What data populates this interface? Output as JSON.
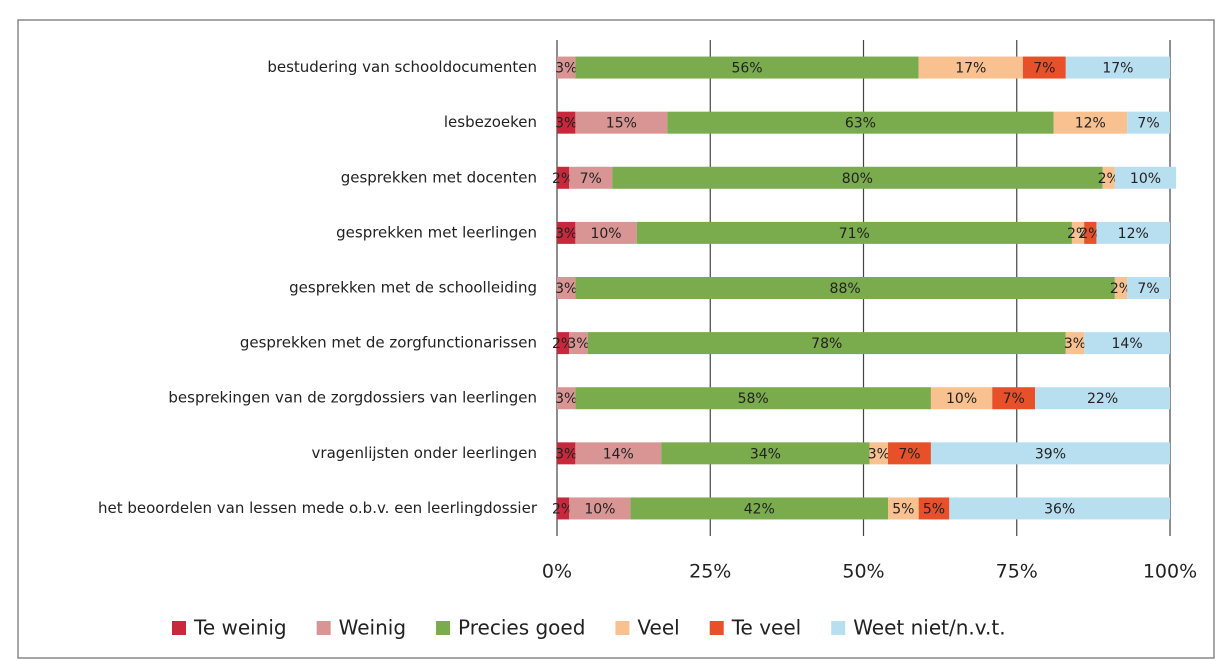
{
  "chart_data": {
    "type": "stacked-bar-horizontal",
    "categories": [
      "bestudering van schooldocumenten",
      "lesbezoeken",
      "gesprekken met docenten",
      "gesprekken met leerlingen",
      "gesprekken met de schoolleiding",
      "gesprekken met de zorgfunctionarissen",
      "besprekingen van de zorgdossiers van leerlingen",
      "vragenlijsten onder leerlingen",
      "het beoordelen van lessen mede o.b.v. een leerlingdossier"
    ],
    "series": [
      {
        "name": "Te weinig",
        "color": "#c8283c",
        "values": [
          null,
          3,
          2,
          3,
          null,
          2,
          null,
          3,
          2
        ],
        "value_labels": [
          null,
          "3%",
          "2%",
          "3%",
          null,
          "2%",
          null,
          "3%",
          "2%"
        ]
      },
      {
        "name": "Weinig",
        "color": "#d99594",
        "values": [
          3,
          15,
          7,
          10,
          3,
          3,
          3,
          14,
          10
        ],
        "value_labels": [
          "3%",
          "15%",
          "7%",
          "10%",
          "3%",
          "3%",
          "3%",
          "14%",
          "10%"
        ]
      },
      {
        "name": "Precies goed",
        "color": "#7aab4d",
        "values": [
          56,
          63,
          80,
          71,
          88,
          78,
          58,
          34,
          42
        ],
        "value_labels": [
          "56%",
          "63%",
          "80%",
          "71%",
          "88%",
          "78%",
          "58%",
          "34%",
          "42%"
        ]
      },
      {
        "name": "Veel",
        "color": "#f9c090",
        "values": [
          17,
          12,
          2,
          2,
          2,
          3,
          10,
          3,
          5
        ],
        "value_labels": [
          "17%",
          "12%",
          "2%",
          "2%",
          "2%",
          "3%",
          "10%",
          "3%",
          "5%"
        ]
      },
      {
        "name": "Te veel",
        "color": "#e8502a",
        "values": [
          7,
          null,
          null,
          2,
          null,
          null,
          7,
          7,
          5
        ],
        "value_labels": [
          "7%",
          null,
          null,
          "2%",
          null,
          null,
          "7%",
          "7%",
          "5%"
        ]
      },
      {
        "name": "Weet niet/n.v.t.",
        "color": "#b8dff0",
        "values": [
          17,
          7,
          10,
          12,
          7,
          14,
          22,
          39,
          36
        ],
        "value_labels": [
          "17%",
          "7%",
          "10%",
          "12%",
          "7%",
          "14%",
          "22%",
          "39%",
          "36%"
        ]
      }
    ],
    "xlim": [
      0,
      100
    ],
    "xticks": [
      {
        "value": 0,
        "label": "0%"
      },
      {
        "value": 25,
        "label": "25%"
      },
      {
        "value": 50,
        "label": "50%"
      },
      {
        "value": 75,
        "label": "75%"
      },
      {
        "value": 100,
        "label": "100%"
      }
    ],
    "grid": true,
    "legend": "bottom"
  }
}
